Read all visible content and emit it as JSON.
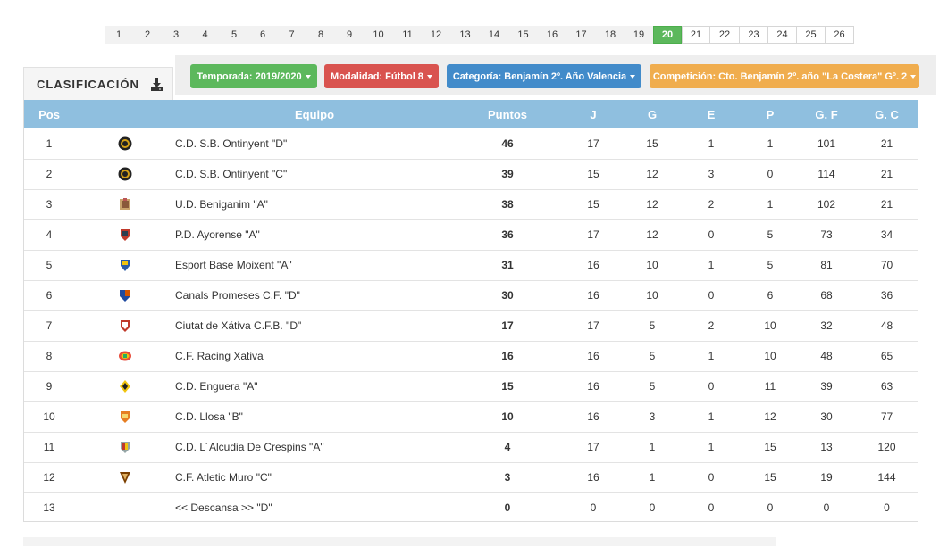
{
  "pagination": {
    "pages": [
      "1",
      "2",
      "3",
      "4",
      "5",
      "6",
      "7",
      "8",
      "9",
      "10",
      "11",
      "12",
      "13",
      "14",
      "15",
      "16",
      "17",
      "18",
      "19",
      "20",
      "21",
      "22",
      "23",
      "24",
      "25",
      "26"
    ],
    "active": "20"
  },
  "header": {
    "title": "CLASIFICACIÓN",
    "filters": [
      {
        "label": "Temporada: 2019/2020",
        "color": "#5cb85c"
      },
      {
        "label": "Modalidad: Fútbol 8",
        "color": "#d9534f"
      },
      {
        "label": "Categoría: Benjamín 2º. Año Valencia",
        "color": "#428bca"
      },
      {
        "label": "Competición: Cto. Benjamín 2º. año \"La Costera\" Gº. 2",
        "color": "#f0ad4e"
      }
    ]
  },
  "table": {
    "columns": [
      "Pos",
      "",
      "Equipo",
      "Puntos",
      "J",
      "G",
      "E",
      "P",
      "G. F",
      "G. C"
    ],
    "rows": [
      {
        "pos": "1",
        "crest": "ontinyent-crest",
        "team": "C.D. S.B. Ontinyent \"D\"",
        "pts": "46",
        "j": "17",
        "g": "15",
        "e": "1",
        "p": "1",
        "gf": "101",
        "gc": "21"
      },
      {
        "pos": "2",
        "crest": "ontinyent-crest",
        "team": "C.D. S.B. Ontinyent \"C\"",
        "pts": "39",
        "j": "15",
        "g": "12",
        "e": "3",
        "p": "0",
        "gf": "114",
        "gc": "21"
      },
      {
        "pos": "3",
        "crest": "beniganim-crest",
        "team": "U.D. Beniganim \"A\"",
        "pts": "38",
        "j": "15",
        "g": "12",
        "e": "2",
        "p": "1",
        "gf": "102",
        "gc": "21"
      },
      {
        "pos": "4",
        "crest": "ayorense-crest",
        "team": "P.D. Ayorense \"A\"",
        "pts": "36",
        "j": "17",
        "g": "12",
        "e": "0",
        "p": "5",
        "gf": "73",
        "gc": "34"
      },
      {
        "pos": "5",
        "crest": "moixent-crest",
        "team": "Esport Base Moixent \"A\"",
        "pts": "31",
        "j": "16",
        "g": "10",
        "e": "1",
        "p": "5",
        "gf": "81",
        "gc": "70"
      },
      {
        "pos": "6",
        "crest": "canals-crest",
        "team": "Canals Promeses C.F. \"D\"",
        "pts": "30",
        "j": "16",
        "g": "10",
        "e": "0",
        "p": "6",
        "gf": "68",
        "gc": "36"
      },
      {
        "pos": "7",
        "crest": "xativa-crest",
        "team": "Ciutat de Xátiva C.F.B. \"D\"",
        "pts": "17",
        "j": "17",
        "g": "5",
        "e": "2",
        "p": "10",
        "gf": "32",
        "gc": "48"
      },
      {
        "pos": "8",
        "crest": "racing-xativa-crest",
        "team": "C.F. Racing Xativa",
        "pts": "16",
        "j": "16",
        "g": "5",
        "e": "1",
        "p": "10",
        "gf": "48",
        "gc": "65"
      },
      {
        "pos": "9",
        "crest": "enguera-crest",
        "team": "C.D. Enguera \"A\"",
        "pts": "15",
        "j": "16",
        "g": "5",
        "e": "0",
        "p": "11",
        "gf": "39",
        "gc": "63"
      },
      {
        "pos": "10",
        "crest": "llosa-crest",
        "team": "C.D. Llosa \"B\"",
        "pts": "10",
        "j": "16",
        "g": "3",
        "e": "1",
        "p": "12",
        "gf": "30",
        "gc": "77"
      },
      {
        "pos": "11",
        "crest": "alcudia-crest",
        "team": "C.D. L´Alcudia De Crespins \"A\"",
        "pts": "4",
        "j": "17",
        "g": "1",
        "e": "1",
        "p": "15",
        "gf": "13",
        "gc": "120"
      },
      {
        "pos": "12",
        "crest": "muro-crest",
        "team": "C.F. Atletic Muro \"C\"",
        "pts": "3",
        "j": "16",
        "g": "1",
        "e": "0",
        "p": "15",
        "gf": "19",
        "gc": "144"
      },
      {
        "pos": "13",
        "crest": "",
        "team": "<< Descansa >> \"D\"",
        "pts": "0",
        "j": "0",
        "g": "0",
        "e": "0",
        "p": "0",
        "gf": "0",
        "gc": "0"
      }
    ]
  }
}
